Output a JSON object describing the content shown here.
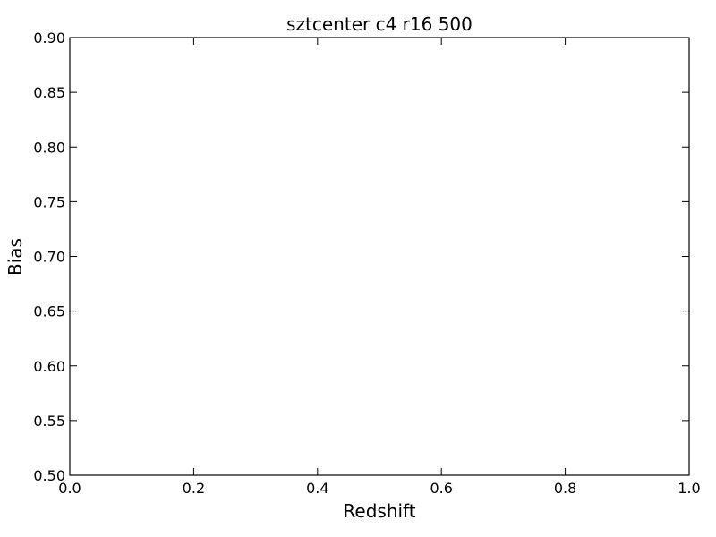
{
  "chart_data": {
    "type": "line",
    "title": "sztcenter c4 r16 500",
    "xlabel": "Redshift",
    "ylabel": "Bias",
    "xlim": [
      0.0,
      1.0
    ],
    "ylim": [
      0.5,
      0.9
    ],
    "x_ticks": [
      0.0,
      0.2,
      0.4,
      0.6,
      0.8,
      1.0
    ],
    "y_ticks": [
      0.5,
      0.55,
      0.6,
      0.65,
      0.7,
      0.75,
      0.8,
      0.85,
      0.9
    ],
    "x_tick_labels": [
      "0.0",
      "0.2",
      "0.4",
      "0.6",
      "0.8",
      "1.0"
    ],
    "y_tick_labels": [
      "0.50",
      "0.55",
      "0.60",
      "0.65",
      "0.70",
      "0.75",
      "0.80",
      "0.85",
      "0.90"
    ],
    "grid": false,
    "series": []
  }
}
